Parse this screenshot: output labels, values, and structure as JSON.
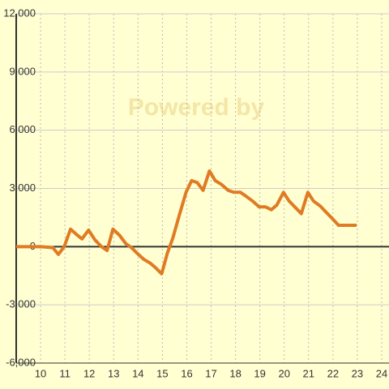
{
  "chart_data": {
    "type": "line",
    "watermark": "Powered by",
    "x": [
      9,
      10,
      10.5,
      10.73,
      10.97,
      11.23,
      11.5,
      11.7,
      11.97,
      12.23,
      12.5,
      12.73,
      12.97,
      13.23,
      13.5,
      13.73,
      13.97,
      14.23,
      14.5,
      14.73,
      14.97,
      15.2,
      15.43,
      15.7,
      15.97,
      16.2,
      16.43,
      16.67,
      16.93,
      17.17,
      17.43,
      17.7,
      17.93,
      18.2,
      18.43,
      18.7,
      18.97,
      19.23,
      19.47,
      19.7,
      19.97,
      20.2,
      20.47,
      20.7,
      20.97,
      21.2,
      21.47,
      21.7,
      21.97,
      22.23,
      22.47,
      22.97
    ],
    "series": [
      {
        "color": "#e07b24",
        "values": [
          0,
          0,
          -50,
          -400,
          0,
          900,
          600,
          400,
          850,
          350,
          0,
          -200,
          900,
          600,
          150,
          -50,
          -350,
          -650,
          -850,
          -1100,
          -1400,
          -350,
          450,
          1650,
          2800,
          3400,
          3300,
          2900,
          3900,
          3400,
          3200,
          2900,
          2800,
          2800,
          2600,
          2350,
          2050,
          2050,
          1900,
          2150,
          2800,
          2350,
          2000,
          1700,
          2800,
          2350,
          2100,
          1800,
          1450,
          1100,
          1100,
          1100
        ]
      }
    ],
    "xlim": [
      9,
      24.3
    ],
    "xticks": [
      10,
      11,
      12,
      13,
      14,
      15,
      16,
      17,
      18,
      19,
      20,
      21,
      22,
      23,
      24
    ],
    "ylim": [
      -6000,
      12000
    ],
    "yticks": [
      {
        "value": -6000,
        "label": "-6,000"
      },
      {
        "value": -3000,
        "label": "-3,000"
      },
      0,
      {
        "value": 3000,
        "label": "3,000"
      },
      {
        "value": 6000,
        "label": "6,000"
      },
      {
        "value": 9000,
        "label": "9,000"
      },
      {
        "value": 12000,
        "label": "12,000"
      }
    ],
    "grid": true
  }
}
